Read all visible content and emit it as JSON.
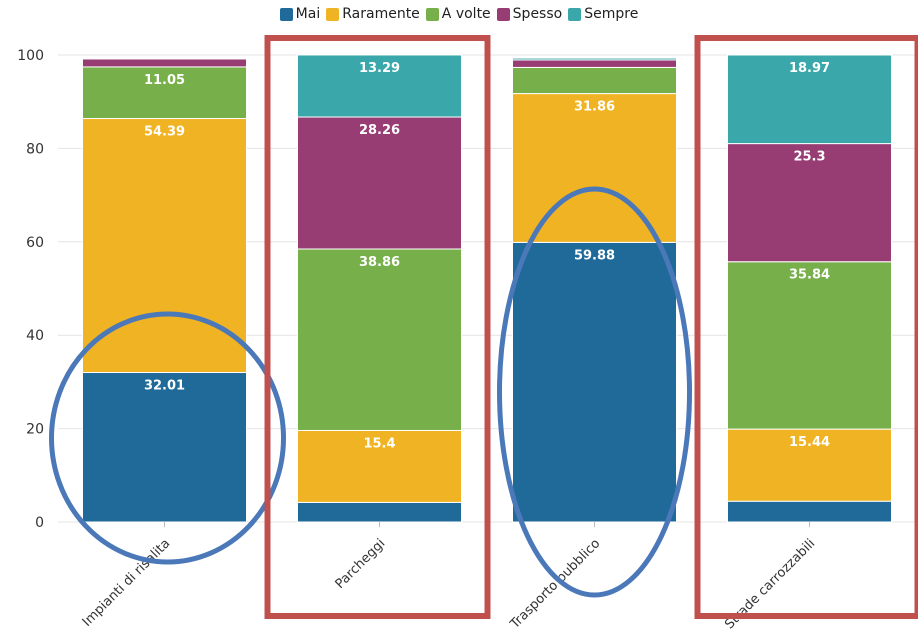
{
  "chart_data": {
    "type": "bar",
    "stacked": true,
    "categories": [
      "Impianti di risalita",
      "Parcheggi",
      "Trasporto pubblico",
      "Strade carrozzabili"
    ],
    "series": [
      {
        "name": "Mai",
        "color": "#1f6a98",
        "values": [
          32.01,
          4.2,
          59.88,
          4.45
        ],
        "labels": [
          "32.01",
          null,
          "59.88",
          null
        ]
      },
      {
        "name": "Raramente",
        "color": "#f0b323",
        "values": [
          54.39,
          15.4,
          31.86,
          15.44
        ],
        "labels": [
          "54.39",
          "15.4",
          "31.86",
          "15.44"
        ]
      },
      {
        "name": "A volte",
        "color": "#77b04a",
        "values": [
          11.05,
          38.86,
          5.6,
          35.84
        ],
        "labels": [
          "11.05",
          "38.86",
          null,
          "35.84"
        ]
      },
      {
        "name": "Spesso",
        "color": "#983c74",
        "values": [
          1.7,
          28.26,
          1.6,
          25.3
        ],
        "labels": [
          null,
          "28.26",
          null,
          "25.3"
        ]
      },
      {
        "name": "Sempre",
        "color": "#3aa8aa",
        "values": [
          0,
          13.29,
          0.4,
          18.97
        ],
        "labels": [
          null,
          "13.29",
          null,
          "18.97"
        ]
      }
    ],
    "ylim": [
      0,
      100
    ],
    "yticks": [
      0,
      20,
      40,
      60,
      80,
      100
    ],
    "grid": true,
    "legend_position": "top",
    "annotations": {
      "circles": [
        "Impianti di risalita",
        "Trasporto pubblico"
      ],
      "rectangles": [
        "Parcheggi",
        "Strade carrozzabili"
      ],
      "circle_color": "#4a78b8",
      "rectangle_color": "#c0504d"
    }
  }
}
